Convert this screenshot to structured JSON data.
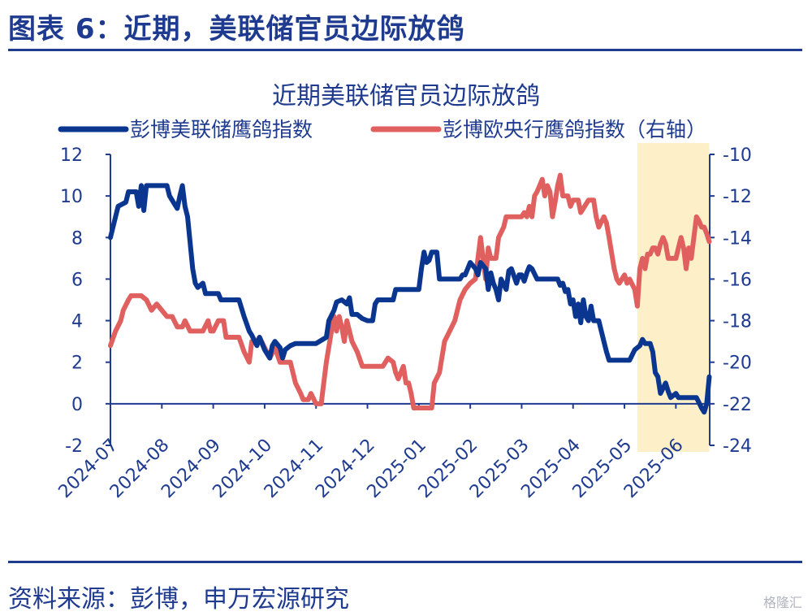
{
  "header": {
    "figure_title": "图表 6：近期，美联储官员边际放鸽",
    "source": "资料来源：彭博，申万宏源研究",
    "watermark": "格隆汇"
  },
  "colors": {
    "primary": "#1f3b8f",
    "fed": "#0b3690",
    "ecb": "#e0605f",
    "highlight": "#fdf0c8"
  },
  "chart_data": {
    "type": "line",
    "title": "近期美联储官员边际放鸽",
    "x_categories": [
      "2024-07",
      "2024-08",
      "2024-09",
      "2024-10",
      "2024-11",
      "2024-12",
      "2025-01",
      "2025-02",
      "2025-03",
      "2025-04",
      "2025-05",
      "2025-06"
    ],
    "x_range": [
      0,
      11.8
    ],
    "y_left": {
      "range": [
        -2,
        12
      ],
      "ticks": [
        "12",
        "10",
        "8",
        "6",
        "4",
        "2",
        "0",
        "-2"
      ]
    },
    "y_right": {
      "range": [
        -24,
        -10
      ],
      "ticks": [
        "-10",
        "-12",
        "-14",
        "-16",
        "-18",
        "-20",
        "-22",
        "-24"
      ]
    },
    "highlight_range": [
      10.25,
      11.65
    ],
    "grid": false,
    "legend_position": "top",
    "series": [
      {
        "name": "彭博美联储鹰鸽指数",
        "axis": "left",
        "points": [
          [
            0,
            8
          ],
          [
            0.1,
            9
          ],
          [
            0.15,
            9.5
          ],
          [
            0.3,
            9.7
          ],
          [
            0.35,
            10.2
          ],
          [
            0.5,
            10.2
          ],
          [
            0.55,
            9.5
          ],
          [
            0.6,
            10.5
          ],
          [
            0.65,
            9.3
          ],
          [
            0.7,
            10.5
          ],
          [
            1.0,
            10.5
          ],
          [
            1.1,
            10.5
          ],
          [
            1.15,
            10.0
          ],
          [
            1.25,
            9.6
          ],
          [
            1.3,
            9.4
          ],
          [
            1.35,
            10.0
          ],
          [
            1.4,
            10.5
          ],
          [
            1.45,
            9.5
          ],
          [
            1.5,
            9.0
          ],
          [
            1.6,
            6.5
          ],
          [
            1.65,
            5.8
          ],
          [
            1.7,
            5.6
          ],
          [
            1.8,
            5.8
          ],
          [
            1.85,
            5.3
          ],
          [
            2.0,
            5.3
          ],
          [
            2.1,
            5.3
          ],
          [
            2.15,
            5.0
          ],
          [
            2.5,
            5.0
          ],
          [
            2.6,
            4.2
          ],
          [
            2.7,
            3.5
          ],
          [
            2.75,
            3.3
          ],
          [
            2.85,
            2.8
          ],
          [
            2.9,
            3.2
          ],
          [
            3.0,
            2.6
          ],
          [
            3.1,
            2.2
          ],
          [
            3.15,
            2.8
          ],
          [
            3.2,
            3.0
          ],
          [
            3.3,
            2.7
          ],
          [
            3.35,
            2.2
          ],
          [
            3.4,
            2.6
          ],
          [
            3.5,
            2.8
          ],
          [
            3.6,
            2.9
          ],
          [
            4.0,
            2.9
          ],
          [
            4.2,
            3.2
          ],
          [
            4.25,
            4.0
          ],
          [
            4.35,
            4.5
          ],
          [
            4.4,
            4.9
          ],
          [
            4.5,
            5.0
          ],
          [
            4.6,
            4.8
          ],
          [
            4.65,
            5.1
          ],
          [
            4.7,
            4.3
          ],
          [
            4.8,
            4.3
          ],
          [
            4.9,
            4.1
          ],
          [
            5.0,
            4.0
          ],
          [
            5.1,
            4.0
          ],
          [
            5.15,
            4.8
          ],
          [
            5.2,
            5.0
          ],
          [
            5.5,
            5.0
          ],
          [
            5.55,
            5.5
          ],
          [
            6.0,
            5.5
          ],
          [
            6.05,
            6.5
          ],
          [
            6.1,
            7.3
          ],
          [
            6.15,
            6.8
          ],
          [
            6.2,
            6.9
          ],
          [
            6.25,
            7.3
          ],
          [
            6.35,
            7.3
          ],
          [
            6.4,
            6.0
          ],
          [
            6.8,
            6.0
          ],
          [
            6.85,
            6.2
          ],
          [
            6.9,
            6.2
          ],
          [
            6.95,
            6.5
          ],
          [
            7.0,
            6.8
          ],
          [
            7.1,
            6.5
          ],
          [
            7.15,
            6.2
          ],
          [
            7.2,
            6.8
          ],
          [
            7.3,
            6.5
          ],
          [
            7.35,
            5.5
          ],
          [
            7.4,
            6.3
          ],
          [
            7.45,
            5.8
          ],
          [
            7.5,
            5.5
          ],
          [
            7.55,
            5.0
          ],
          [
            7.6,
            6.0
          ],
          [
            7.7,
            5.5
          ],
          [
            7.75,
            6.4
          ],
          [
            7.8,
            6.5
          ],
          [
            7.9,
            5.8
          ],
          [
            7.95,
            6.2
          ],
          [
            8.0,
            6.2
          ],
          [
            8.05,
            5.9
          ],
          [
            8.1,
            6.3
          ],
          [
            8.15,
            6.6
          ],
          [
            8.2,
            6.5
          ],
          [
            8.3,
            6.0
          ],
          [
            8.6,
            6.0
          ],
          [
            8.7,
            6.0
          ],
          [
            8.75,
            5.7
          ],
          [
            8.8,
            5.8
          ],
          [
            8.85,
            5.4
          ],
          [
            8.9,
            5.5
          ],
          [
            8.95,
            4.8
          ],
          [
            9.0,
            5.0
          ],
          [
            9.05,
            4.2
          ],
          [
            9.1,
            4.8
          ],
          [
            9.15,
            3.9
          ],
          [
            9.2,
            5.0
          ],
          [
            9.25,
            4.2
          ],
          [
            9.3,
            4.0
          ],
          [
            9.35,
            4.7
          ],
          [
            9.4,
            4.0
          ],
          [
            9.5,
            4.0
          ],
          [
            9.6,
            3.0
          ],
          [
            9.65,
            2.5
          ],
          [
            9.7,
            2.1
          ],
          [
            10.0,
            2.1
          ],
          [
            10.1,
            2.1
          ],
          [
            10.2,
            2.6
          ],
          [
            10.3,
            2.8
          ],
          [
            10.35,
            3.1
          ],
          [
            10.4,
            2.9
          ],
          [
            10.5,
            2.9
          ],
          [
            10.55,
            2.5
          ],
          [
            10.6,
            1.5
          ],
          [
            10.65,
            1.3
          ],
          [
            10.7,
            0.5
          ],
          [
            10.8,
            1.0
          ],
          [
            10.85,
            0.6
          ],
          [
            10.9,
            0.3
          ],
          [
            11.0,
            0.5
          ],
          [
            11.05,
            0.3
          ],
          [
            11.4,
            0.3
          ],
          [
            11.5,
            -0.2
          ],
          [
            11.55,
            -0.4
          ],
          [
            11.6,
            0.0
          ],
          [
            11.65,
            1.3
          ]
        ]
      },
      {
        "name": "彭博欧央行鹰鸽指数（右轴）",
        "axis": "right",
        "points": [
          [
            0,
            -19.2
          ],
          [
            0.1,
            -18.5
          ],
          [
            0.2,
            -18.0
          ],
          [
            0.25,
            -17.5
          ],
          [
            0.35,
            -17.0
          ],
          [
            0.4,
            -16.8
          ],
          [
            0.6,
            -16.8
          ],
          [
            0.7,
            -17.0
          ],
          [
            0.8,
            -17.5
          ],
          [
            0.9,
            -17.2
          ],
          [
            1.0,
            -17.5
          ],
          [
            1.1,
            -17.8
          ],
          [
            1.2,
            -17.8
          ],
          [
            1.3,
            -18.3
          ],
          [
            1.4,
            -18.3
          ],
          [
            1.45,
            -18.0
          ],
          [
            1.55,
            -18.5
          ],
          [
            1.8,
            -18.5
          ],
          [
            1.9,
            -18.0
          ],
          [
            1.95,
            -18.5
          ],
          [
            2.0,
            -18.5
          ],
          [
            2.1,
            -18.0
          ],
          [
            2.2,
            -18.0
          ],
          [
            2.25,
            -18.8
          ],
          [
            2.5,
            -18.8
          ],
          [
            2.6,
            -19.5
          ],
          [
            2.7,
            -20.0
          ],
          [
            2.75,
            -19.0
          ],
          [
            2.85,
            -19.0
          ],
          [
            2.9,
            -18.8
          ],
          [
            3.0,
            -19.3
          ],
          [
            3.1,
            -19.8
          ],
          [
            3.2,
            -19.3
          ],
          [
            3.3,
            -20.0
          ],
          [
            3.5,
            -20.0
          ],
          [
            3.6,
            -21.0
          ],
          [
            3.7,
            -21.5
          ],
          [
            3.75,
            -21.8
          ],
          [
            3.85,
            -21.8
          ],
          [
            3.9,
            -21.5
          ],
          [
            4.0,
            -22.0
          ],
          [
            4.1,
            -22.0
          ],
          [
            4.15,
            -21.0
          ],
          [
            4.2,
            -20.0
          ],
          [
            4.3,
            -18.5
          ],
          [
            4.35,
            -17.8
          ],
          [
            4.4,
            -18.5
          ],
          [
            4.45,
            -17.8
          ],
          [
            4.5,
            -18.3
          ],
          [
            4.55,
            -19.0
          ],
          [
            4.6,
            -18.0
          ],
          [
            4.7,
            -19.0
          ],
          [
            4.8,
            -19.5
          ],
          [
            4.9,
            -20.2
          ],
          [
            5.3,
            -20.2
          ],
          [
            5.4,
            -19.8
          ],
          [
            5.5,
            -20.0
          ],
          [
            5.55,
            -20.5
          ],
          [
            5.6,
            -20.8
          ],
          [
            5.7,
            -20.2
          ],
          [
            5.75,
            -21.0
          ],
          [
            5.8,
            -21.0
          ],
          [
            5.85,
            -21.5
          ],
          [
            5.9,
            -22.2
          ],
          [
            6.25,
            -22.2
          ],
          [
            6.3,
            -21.0
          ],
          [
            6.4,
            -20.5
          ],
          [
            6.5,
            -19.0
          ],
          [
            6.6,
            -18.5
          ],
          [
            6.7,
            -18.0
          ],
          [
            6.8,
            -17.0
          ],
          [
            6.9,
            -16.5
          ],
          [
            7.0,
            -16.2
          ],
          [
            7.1,
            -16.0
          ],
          [
            7.15,
            -15.0
          ],
          [
            7.2,
            -14.0
          ],
          [
            7.3,
            -16.0
          ],
          [
            7.35,
            -14.5
          ],
          [
            7.4,
            -15.0
          ],
          [
            7.5,
            -15.0
          ],
          [
            7.55,
            -14.0
          ],
          [
            7.65,
            -13.5
          ],
          [
            7.7,
            -13.0
          ],
          [
            8.0,
            -13.0
          ],
          [
            8.05,
            -12.8
          ],
          [
            8.1,
            -13.0
          ],
          [
            8.15,
            -12.5
          ],
          [
            8.2,
            -13.0
          ],
          [
            8.25,
            -12.0
          ],
          [
            8.3,
            -11.8
          ],
          [
            8.35,
            -11.5
          ],
          [
            8.4,
            -11.2
          ],
          [
            8.45,
            -12.0
          ],
          [
            8.5,
            -11.5
          ],
          [
            8.55,
            -11.8
          ],
          [
            8.6,
            -13.0
          ],
          [
            8.65,
            -12.3
          ],
          [
            8.7,
            -11.5
          ],
          [
            8.75,
            -11.0
          ],
          [
            8.8,
            -12.0
          ],
          [
            8.9,
            -12.0
          ],
          [
            8.95,
            -12.5
          ],
          [
            9.0,
            -12.2
          ],
          [
            9.1,
            -12.2
          ],
          [
            9.15,
            -12.8
          ],
          [
            9.3,
            -12.2
          ],
          [
            9.4,
            -12.2
          ],
          [
            9.45,
            -13.0
          ],
          [
            9.5,
            -13.5
          ],
          [
            9.6,
            -13.0
          ],
          [
            9.65,
            -13.3
          ],
          [
            9.7,
            -14.0
          ],
          [
            9.8,
            -15.5
          ],
          [
            9.85,
            -16.0
          ],
          [
            9.9,
            -16.2
          ],
          [
            10.0,
            -15.8
          ],
          [
            10.05,
            -16.2
          ],
          [
            10.1,
            -16.0
          ],
          [
            10.2,
            -16.5
          ],
          [
            10.25,
            -17.3
          ],
          [
            10.3,
            -15.5
          ],
          [
            10.35,
            -15.0
          ],
          [
            10.4,
            -15.5
          ],
          [
            10.45,
            -14.8
          ],
          [
            10.5,
            -14.8
          ],
          [
            10.55,
            -14.5
          ],
          [
            10.6,
            -14.5
          ],
          [
            10.65,
            -14.8
          ],
          [
            10.7,
            -14.3
          ],
          [
            10.75,
            -14.0
          ],
          [
            10.8,
            -14.3
          ],
          [
            10.85,
            -15.0
          ],
          [
            11.0,
            -15.0
          ],
          [
            11.05,
            -14.5
          ],
          [
            11.1,
            -14.0
          ],
          [
            11.15,
            -14.5
          ],
          [
            11.2,
            -15.5
          ],
          [
            11.25,
            -14.5
          ],
          [
            11.3,
            -15.0
          ],
          [
            11.35,
            -14.0
          ],
          [
            11.4,
            -13.0
          ],
          [
            11.45,
            -13.2
          ],
          [
            11.5,
            -13.5
          ],
          [
            11.55,
            -13.5
          ],
          [
            11.6,
            -13.8
          ],
          [
            11.65,
            -14.2
          ]
        ]
      }
    ]
  }
}
